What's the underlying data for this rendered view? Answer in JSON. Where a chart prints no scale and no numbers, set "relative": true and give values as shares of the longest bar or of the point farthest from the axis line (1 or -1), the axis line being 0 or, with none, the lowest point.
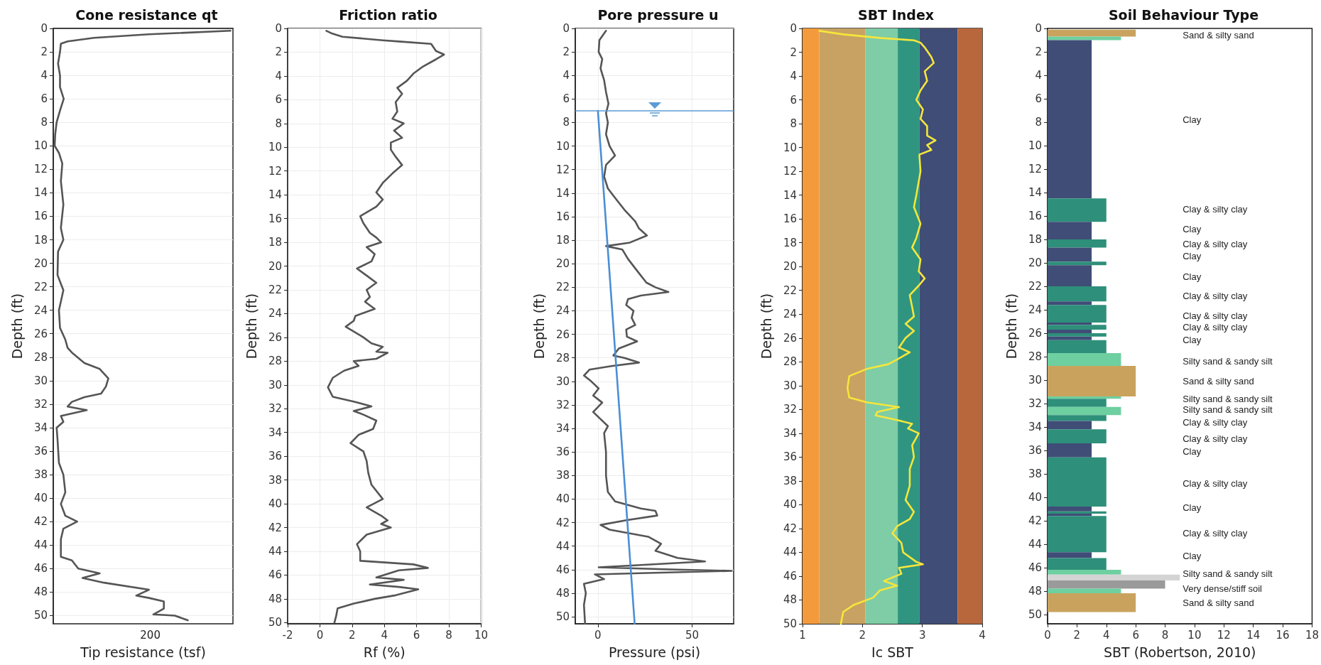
{
  "chart_data": [
    {
      "type": "line",
      "orientation": "horizontal",
      "title": "Cone resistance qt",
      "xlabel": "Tip resistance (tsf)",
      "ylabel": "Depth (ft)",
      "relative": true,
      "annotations": [
        "200"
      ],
      "ylim": [
        50.7,
        0
      ],
      "yticks": [
        0,
        2,
        4,
        6,
        8,
        10,
        12,
        14,
        16,
        18,
        20,
        22,
        24,
        26,
        28,
        30,
        32,
        34,
        36,
        38,
        40,
        42,
        44,
        46,
        48,
        50
      ],
      "grid": true,
      "marker": "none",
      "series": [
        {
          "color": "#555555",
          "values": [
            1,
            0.54,
            0.23,
            0.081,
            0.043,
            0.038,
            0.027,
            0.038,
            0.038,
            0.059,
            0.038,
            0.019,
            0.011,
            0.008,
            0.032,
            0.051,
            0.043,
            0.057,
            0.043,
            0.057,
            0.027,
            0.024,
            0.057,
            0.032,
            0.038,
            0.068,
            0.081,
            0.105,
            0.176,
            0.262,
            0.311,
            0.297,
            0.27,
            0.176,
            0.105,
            0.081,
            0.189,
            0.043,
            0.057,
            0.019,
            0.024,
            0.032,
            0.057,
            0.068,
            0.043,
            0.068,
            0.135,
            0.057,
            0.043,
            0.043,
            0.105,
            0.141,
            0.262,
            0.165,
            0.286,
            0.54,
            0.468,
            0.54,
            0.624,
            0.624,
            0.565,
            0.686,
            0.759
          ],
          "x": [
            0.2,
            0.5,
            0.8,
            1.1,
            1.3,
            2,
            3,
            4,
            5,
            6,
            7,
            8,
            9,
            10,
            10.6,
            11.5,
            13,
            15,
            17,
            18,
            19,
            21,
            22.3,
            24,
            25.5,
            26.5,
            27.2,
            27.6,
            28.5,
            29,
            29.8,
            30.5,
            31.1,
            31.4,
            31.8,
            32.2,
            32.5,
            33,
            33.5,
            34,
            35,
            37,
            38,
            39.5,
            40.5,
            41.5,
            42,
            42.6,
            43.5,
            45,
            45.3,
            46,
            46.4,
            46.8,
            47.2,
            47.8,
            48.3,
            48.5,
            48.8,
            49.4,
            49.9,
            50,
            50.4
          ]
        }
      ]
    },
    {
      "type": "line",
      "title": "Friction ratio",
      "xlabel": "Rf (%)",
      "ylabel": "Depth (ft)",
      "xlim": [
        -2,
        10
      ],
      "xticks": [
        -2,
        0,
        2,
        4,
        6,
        8,
        10
      ],
      "ylim": [
        50.1,
        0
      ],
      "yticks": [
        0,
        2,
        4,
        6,
        8,
        10,
        12,
        14,
        16,
        18,
        20,
        22,
        24,
        26,
        28,
        30,
        32,
        34,
        36,
        38,
        40,
        42,
        44,
        46,
        48,
        50
      ],
      "grid": true,
      "marker": "none",
      "series": [
        {
          "color": "#555555",
          "x": [
            0.4,
            0.7,
            1.4,
            3.9,
            4.9,
            6.9,
            7.2,
            7.7,
            7.2,
            6.4,
            5.8,
            5.4,
            4.8,
            5.1,
            4.7,
            4.8,
            4.5,
            5.2,
            4.6,
            5.1,
            4.4,
            4.4,
            4.7,
            5.1,
            4.5,
            3.9,
            3.5,
            3.9,
            3.5,
            2.5,
            2.7,
            3.1,
            3.5,
            3.8,
            2.9,
            3.4,
            3.2,
            2.3,
            2.9,
            3.5,
            2.9,
            3.1,
            2.8,
            3.4,
            2.2,
            2.1,
            1.6,
            2.1,
            2.7,
            3.2,
            3.9,
            3.5,
            4.2,
            3.5,
            2.1,
            2.4,
            1.5,
            0.8,
            0.5,
            0.8,
            2.1,
            3.2,
            2.1,
            2.7,
            3.5,
            3.3,
            2.4,
            1.9,
            2.7,
            2.9,
            3.0,
            3.2,
            3.9,
            2.9,
            3.8,
            4.2,
            3.8,
            4.4,
            2.9,
            2.3,
            2.5,
            2.5,
            5.8,
            6.7,
            4.9,
            3.5,
            5.2,
            3.1,
            4.9,
            6.1,
            4.7,
            3.4,
            2.1,
            1.1,
            1.0,
            0.9
          ],
          "values": [
            0.2,
            0.4,
            0.7,
            1.0,
            1.1,
            1.3,
            1.9,
            2.2,
            2.6,
            3.2,
            3.8,
            4.4,
            5.0,
            5.5,
            6.2,
            7.0,
            7.6,
            8.0,
            8.6,
            9.2,
            9.6,
            10.2,
            10.8,
            11.5,
            12.2,
            13.0,
            13.8,
            14.4,
            15.0,
            15.8,
            16.4,
            17.2,
            17.6,
            18.0,
            18.4,
            19.0,
            19.6,
            20.2,
            20.8,
            21.4,
            22.0,
            22.6,
            23.0,
            23.6,
            24.2,
            24.6,
            25.1,
            25.5,
            26.0,
            26.5,
            26.8,
            27.2,
            27.3,
            27.8,
            28.0,
            28.4,
            28.8,
            29.4,
            30.2,
            31.0,
            31.4,
            31.8,
            32.2,
            32.5,
            33.0,
            33.7,
            34.2,
            34.9,
            35.6,
            36.4,
            37.4,
            38.4,
            39.6,
            40.3,
            41.0,
            41.4,
            41.7,
            42.0,
            42.6,
            43.4,
            44.0,
            44.8,
            45.1,
            45.4,
            45.6,
            46.2,
            46.4,
            46.8,
            47.0,
            47.2,
            47.7,
            48.0,
            48.4,
            48.8,
            49.5,
            50.0
          ]
        }
      ]
    },
    {
      "type": "line",
      "title": "Pore pressure u",
      "xlabel": "Pressure (psi)",
      "ylabel": "Depth (ft)",
      "xlim": [
        -12,
        72
      ],
      "xticks": [
        0,
        50
      ],
      "ylim": [
        50.6,
        0
      ],
      "yticks": [
        0,
        2,
        4,
        6,
        8,
        10,
        12,
        14,
        16,
        18,
        20,
        22,
        24,
        26,
        28,
        30,
        32,
        34,
        36,
        38,
        40,
        42,
        44,
        46,
        48,
        50
      ],
      "grid": true,
      "marker": "none",
      "ref_lines": [
        {
          "axis": "y",
          "value": 7,
          "color": "#5b9bd5"
        }
      ],
      "series": [
        {
          "color": "#555555",
          "x": [
            4.3,
            0.8,
            0.4,
            2.3,
            1.4,
            3.3,
            4.3,
            5.6,
            4.3,
            5.3,
            4.3,
            6.2,
            9.1,
            4.3,
            3.3,
            5.3,
            9.1,
            14,
            19.8,
            21.8,
            26,
            17,
            4.3,
            13,
            16,
            20.8,
            25.7,
            30.5,
            37.4,
            22.8,
            16,
            15,
            18.9,
            17.9,
            19.8,
            15,
            15.4,
            20.8,
            11.1,
            8.2,
            14,
            21.8,
            7.2,
            -4.5,
            -7.4,
            -3.5,
            0.4,
            -2.5,
            2.3,
            -2.5,
            1.4,
            5.3,
            3.3,
            4.3,
            4.3,
            5.3,
            9.1,
            22.8,
            30.5,
            31.5,
            15,
            1.4,
            6.2,
            26.7,
            33.5,
            30.5,
            42.2,
            56.8,
            22.8,
            0.4,
            42.2,
            71,
            22.8,
            -1.6,
            3.3,
            -7.4,
            -6.4,
            -7.4,
            -6.8
          ],
          "values": [
            0.2,
            1.0,
            2.0,
            2.6,
            3.4,
            4.4,
            5.4,
            6.4,
            7.2,
            8.0,
            9.0,
            10.0,
            10.8,
            11.6,
            12.6,
            13.6,
            14.4,
            15.4,
            16.4,
            17.0,
            17.6,
            18.2,
            18.5,
            18.8,
            19.6,
            20.6,
            21.6,
            22.0,
            22.4,
            22.7,
            23.0,
            23.5,
            24.0,
            24.6,
            25.2,
            25.6,
            26.2,
            26.6,
            27.2,
            27.8,
            28.0,
            28.4,
            28.7,
            29.0,
            29.5,
            30.0,
            30.6,
            31.2,
            31.8,
            32.6,
            33.2,
            33.8,
            34.4,
            36.0,
            38.0,
            39.4,
            40.2,
            40.8,
            41.0,
            41.4,
            41.8,
            42.2,
            42.6,
            43.2,
            43.8,
            44.4,
            45.0,
            45.3,
            45.6,
            45.8,
            46.0,
            46.1,
            46.3,
            46.4,
            46.8,
            47.2,
            48.0,
            49.0,
            50.6
          ]
        },
        {
          "color": "#4a8fd6",
          "x": [
            0,
            19.5
          ],
          "values": [
            7,
            50.6
          ]
        }
      ]
    },
    {
      "type": "line",
      "title": "SBT Index",
      "xlabel": "Ic SBT",
      "ylabel": "Depth (ft)",
      "xlim": [
        1,
        4
      ],
      "xticks": [
        1,
        2,
        3,
        4
      ],
      "ylim": [
        50,
        0
      ],
      "yticks": [
        0,
        2,
        4,
        6,
        8,
        10,
        12,
        14,
        16,
        18,
        20,
        22,
        24,
        26,
        28,
        30,
        32,
        34,
        36,
        38,
        40,
        42,
        44,
        46,
        48,
        50
      ],
      "marker": "none",
      "bands": [
        {
          "axis": "x",
          "from": 1,
          "to": 1.28,
          "color": "#f39a3c"
        },
        {
          "axis": "x",
          "from": 1.28,
          "to": 2.05,
          "color": "#c8a262"
        },
        {
          "axis": "x",
          "from": 2.05,
          "to": 2.59,
          "color": "#7ecda6"
        },
        {
          "axis": "x",
          "from": 2.59,
          "to": 2.95,
          "color": "#2f9580"
        },
        {
          "axis": "x",
          "from": 2.95,
          "to": 3.59,
          "color": "#404d76"
        },
        {
          "axis": "x",
          "from": 3.59,
          "to": 4,
          "color": "#b8663c"
        }
      ],
      "series": [
        {
          "color": "#f5e63c",
          "x": [
            1.28,
            1.68,
            2.29,
            2.86,
            2.97,
            3.04,
            3.15,
            3.19,
            3.04,
            3.08,
            2.97,
            2.9,
            3.01,
            2.97,
            3.08,
            3.08,
            3.22,
            3.08,
            3.15,
            2.95,
            2.97,
            2.9,
            2.86,
            2.97,
            2.9,
            2.83,
            2.97,
            2.94,
            3.04,
            2.94,
            2.79,
            2.83,
            2.86,
            2.72,
            2.86,
            2.72,
            2.61,
            2.79,
            2.58,
            2.43,
            2.07,
            1.78,
            1.75,
            1.78,
            2.07,
            2.61,
            2.25,
            2.22,
            2.5,
            2.83,
            2.76,
            2.94,
            2.83,
            2.86,
            2.79,
            2.79,
            2.72,
            2.86,
            2.79,
            2.58,
            2.5,
            2.65,
            2.68,
            2.9,
            3.01,
            2.61,
            2.65,
            2.36,
            2.58,
            2.29,
            2.18,
            1.86,
            1.68,
            1.64
          ],
          "values": [
            0.2,
            0.5,
            0.8,
            1.0,
            1.2,
            1.6,
            2.4,
            2.9,
            3.6,
            4.4,
            5.2,
            6.0,
            6.8,
            7.6,
            8.2,
            9.0,
            9.4,
            9.8,
            10.2,
            10.6,
            12,
            14,
            15,
            16.4,
            17.6,
            18.4,
            19.4,
            20.4,
            21.0,
            21.6,
            22.4,
            23.4,
            24.2,
            24.8,
            25.4,
            26.0,
            26.8,
            27.2,
            27.8,
            28.2,
            28.6,
            29.2,
            30.2,
            31.0,
            31.4,
            31.8,
            32.2,
            32.5,
            32.8,
            33.2,
            33.6,
            34.0,
            35.0,
            36.0,
            37.0,
            38.4,
            39.6,
            40.6,
            41.2,
            41.8,
            42.4,
            43.2,
            44.0,
            44.8,
            45.0,
            45.3,
            45.8,
            46.4,
            46.8,
            47.2,
            47.8,
            48.4,
            49.0,
            50.0
          ]
        }
      ]
    },
    {
      "type": "histogram",
      "orientation": "horizontal",
      "title": "Soil Behaviour Type",
      "xlabel": "SBT (Robertson, 2010)",
      "ylabel": "Depth (ft)",
      "xlim": [
        0,
        18
      ],
      "xticks": [
        0,
        2,
        4,
        6,
        8,
        10,
        12,
        14,
        16,
        18
      ],
      "ylim": [
        50.8,
        0
      ],
      "yticks": [
        0,
        2,
        4,
        6,
        8,
        10,
        12,
        14,
        16,
        18,
        20,
        22,
        24,
        26,
        28,
        30,
        32,
        34,
        36,
        38,
        40,
        42,
        44,
        46,
        48,
        50
      ],
      "bins": [
        0.1,
        0.7,
        1.0,
        14.5,
        16.5,
        18.0,
        18.7,
        19.9,
        20.2,
        22.0,
        23.3,
        23.6,
        25.1,
        25.3,
        25.7,
        26.0,
        26.3,
        26.6,
        27.7,
        28.8,
        31.4,
        31.6,
        32.3,
        33.0,
        33.5,
        34.2,
        35.4,
        36.6,
        40.8,
        41.2,
        41.4,
        41.6,
        44.7,
        45.2,
        46.2,
        46.6,
        47.1,
        47.8,
        48.2,
        49.8
      ],
      "values": [
        6,
        5,
        3,
        4,
        3,
        4,
        3,
        4,
        3,
        4,
        3,
        4,
        3,
        4,
        3,
        4,
        3,
        4,
        5,
        6,
        5,
        4,
        5,
        4,
        3,
        4,
        3,
        4,
        3,
        4,
        3,
        4,
        3,
        4,
        5,
        9,
        8,
        5,
        6
      ],
      "colors": [
        "#c9a35e",
        "#6ecfa0",
        "#3f4d77",
        "#2e8f7a",
        "#3f4d77",
        "#2e8f7a",
        "#3f4d77",
        "#2e8f7a",
        "#3f4d77",
        "#2e8f7a",
        "#3f4d77",
        "#2e8f7a",
        "#3f4d77",
        "#2e8f7a",
        "#3f4d77",
        "#2e8f7a",
        "#3f4d77",
        "#2e8f7a",
        "#6ecfa0",
        "#c9a35e",
        "#6ecfa0",
        "#2e8f7a",
        "#6ecfa0",
        "#2e8f7a",
        "#3f4d77",
        "#2e8f7a",
        "#3f4d77",
        "#2e8f7a",
        "#3f4d77",
        "#2e8f7a",
        "#3f4d77",
        "#2e8f7a",
        "#3f4d77",
        "#2e8f7a",
        "#6ecfa0",
        "#d4d4d4",
        "#9a9a9a",
        "#6ecfa0",
        "#c9a35e"
      ],
      "annotations": [
        "Sand & silty sand",
        "Clay",
        "Clay & silty clay",
        "Clay",
        "Clay & silty clay",
        "Clay",
        "Clay",
        "Clay & silty clay",
        "Clay & silty clay",
        "Clay & silty clay",
        "Clay",
        "Silty sand & sandy silt",
        "Sand & silty sand",
        "Silty sand & sandy silt",
        "Silty sand & sandy silt",
        "Clay & silty clay",
        "Clay & silty clay",
        "Clay",
        "Clay & silty clay",
        "Clay",
        "Clay & silty clay",
        "Clay",
        "Silty sand & sandy silt",
        "Very dense/stiff soil",
        "Sand & silty sand"
      ]
    }
  ]
}
